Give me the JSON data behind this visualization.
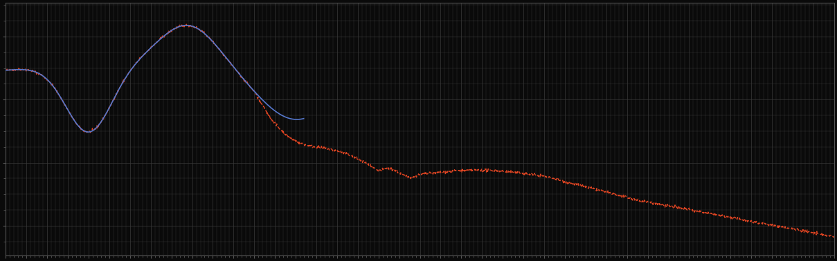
{
  "background_color": "#0a0a0a",
  "plot_bg_color": "#0a0a0a",
  "grid_color": "#3a3a3a",
  "line1_color": "#5577cc",
  "line2_color": "#dd4422",
  "figsize": [
    12.09,
    3.78
  ],
  "dpi": 100,
  "xlim": [
    0,
    100
  ],
  "ylim": [
    0,
    10
  ],
  "grid_major_x": 40,
  "grid_major_y": 4
}
